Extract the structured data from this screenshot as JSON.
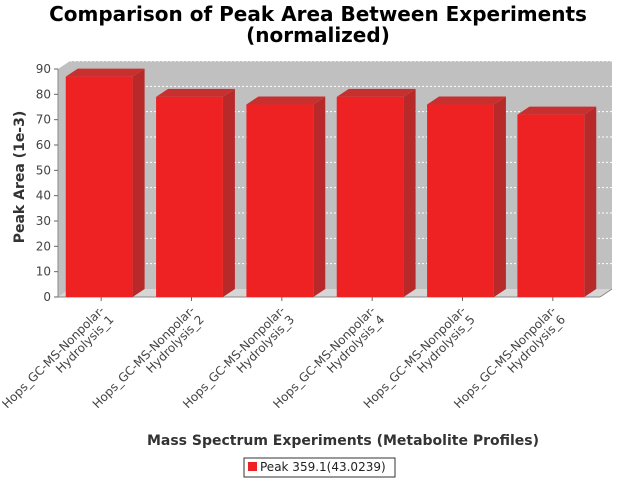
{
  "chart_data": {
    "type": "bar",
    "title_lines": [
      "Comparison of Peak Area Between Experiments",
      "(normalized)"
    ],
    "xlabel": "Mass Spectrum Experiments (Metabolite Profiles)",
    "ylabel": "Peak Area (1e-3)",
    "categories": [
      [
        "Hops_GC-MS-Nonpolar-",
        "Hydrolysis_1"
      ],
      [
        "Hops_GC-MS-Nonpolar-",
        "Hydrolysis_2"
      ],
      [
        "Hops_GC-MS-Nonpolar-",
        "Hydrolysis_3"
      ],
      [
        "Hops_GC-MS-Nonpolar-",
        "Hydrolysis_4"
      ],
      [
        "Hops_GC-MS-Nonpolar-",
        "Hydrolysis_5"
      ],
      [
        "Hops_GC-MS-Nonpolar-",
        "Hydrolysis_6"
      ]
    ],
    "series": [
      {
        "name": "Peak 359.1(43.0239)",
        "values": [
          87,
          79,
          76,
          79,
          76,
          72
        ],
        "color": "#ee2222"
      }
    ],
    "ylim": [
      0,
      90
    ],
    "yticks": [
      0,
      10,
      20,
      30,
      40,
      50,
      60,
      70,
      80,
      90
    ],
    "grid": true,
    "legend_position": "bottom-center",
    "style": "3d",
    "plot_background": "#c0c0c0"
  }
}
